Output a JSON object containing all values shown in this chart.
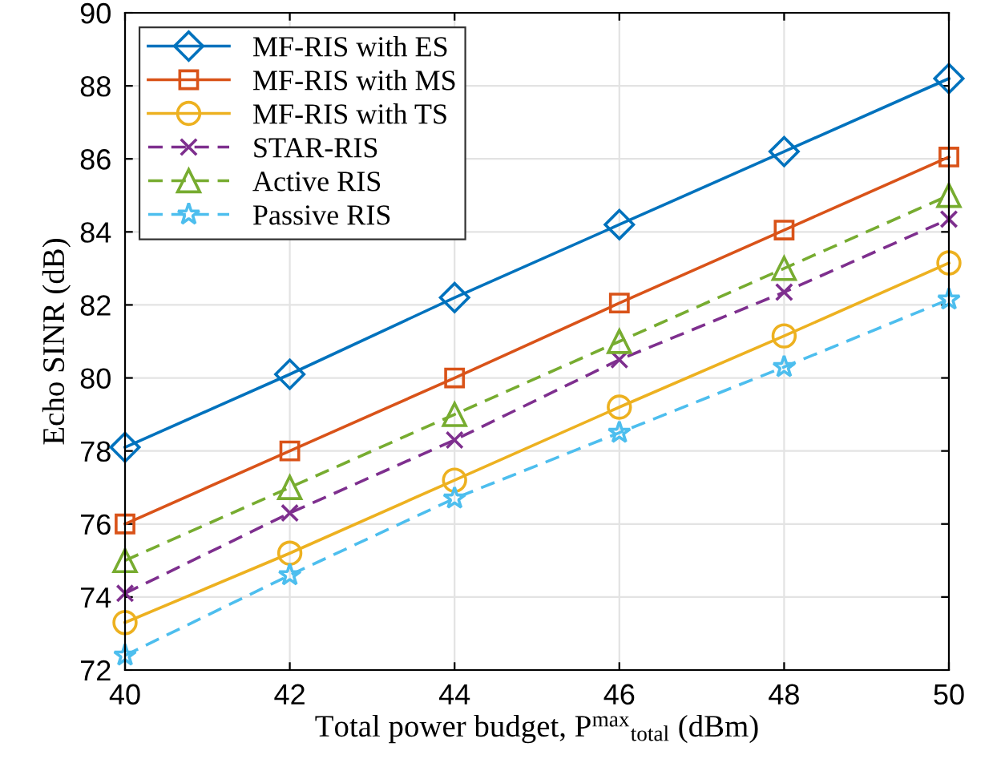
{
  "chart_data": {
    "type": "line",
    "xlabel": "Total power budget, P$^{max}$$_{total}$ (dBm)",
    "ylabel": "Echo SINR (dB)",
    "x": [
      40,
      42,
      44,
      46,
      48,
      50
    ],
    "series": [
      {
        "name": "MF-RIS with ES",
        "color": "#0072bd",
        "marker": "diamond",
        "line_style": "solid",
        "values": [
          78.1,
          80.1,
          82.2,
          84.2,
          86.2,
          88.2
        ]
      },
      {
        "name": "MF-RIS with MS",
        "color": "#d95319",
        "marker": "square",
        "line_style": "solid",
        "values": [
          76.0,
          78.0,
          80.0,
          82.05,
          84.05,
          86.05
        ]
      },
      {
        "name": "MF-RIS with TS",
        "color": "#edb120",
        "marker": "circle",
        "line_style": "solid",
        "values": [
          73.3,
          75.2,
          77.2,
          79.2,
          81.15,
          83.15
        ]
      },
      {
        "name": "STAR-RIS",
        "color": "#7e2f8e",
        "marker": "cross",
        "line_style": "dashed",
        "values": [
          74.1,
          76.3,
          78.3,
          80.5,
          82.35,
          84.35
        ]
      },
      {
        "name": "Active RIS",
        "color": "#77ac30",
        "marker": "triangle",
        "line_style": "dashed",
        "values": [
          75.0,
          77.0,
          79.0,
          81.0,
          83.0,
          85.0
        ]
      },
      {
        "name": "Passive RIS",
        "color": "#4dbeee",
        "marker": "star",
        "line_style": "dashed",
        "values": [
          72.4,
          74.6,
          76.7,
          78.5,
          80.3,
          82.15
        ]
      }
    ],
    "xlim": [
      40,
      50
    ],
    "ylim": [
      72,
      90
    ],
    "xticks": [
      40,
      42,
      44,
      46,
      48,
      50
    ],
    "yticks": [
      72,
      74,
      76,
      78,
      80,
      82,
      84,
      86,
      88,
      90
    ],
    "grid": true,
    "legend": "top left"
  }
}
